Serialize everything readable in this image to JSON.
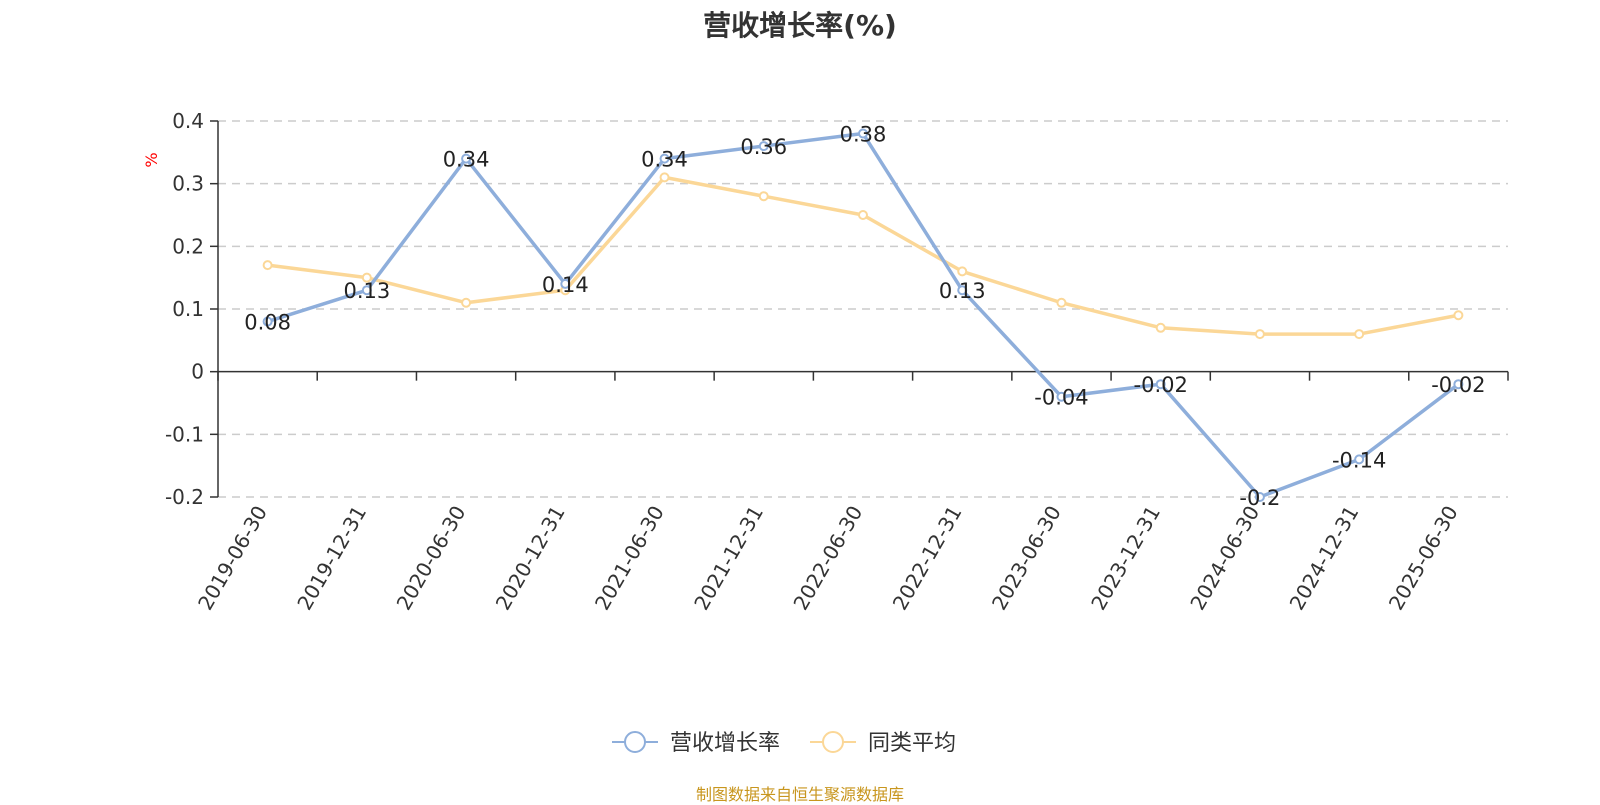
{
  "chart_data": {
    "type": "line",
    "title": "营收增长率(%)",
    "unit_label": "%",
    "categories": [
      "2019-06-30",
      "2019-12-31",
      "2020-06-30",
      "2020-12-31",
      "2021-06-30",
      "2021-12-31",
      "2022-06-30",
      "2022-12-31",
      "2023-06-30",
      "2023-12-31",
      "2024-06-30",
      "2024-12-31",
      "2025-06-30"
    ],
    "series": [
      {
        "name": "营收增长率",
        "color": "#8eaedb",
        "values": [
          0.08,
          0.13,
          0.34,
          0.14,
          0.34,
          0.36,
          0.38,
          0.13,
          -0.04,
          -0.02,
          -0.2,
          -0.14,
          -0.02
        ],
        "labels": [
          "0.08",
          "0.13",
          "0.34",
          "0.14",
          "0.34",
          "0.36",
          "0.38",
          "0.13",
          "-0.04",
          "-0.02",
          "-0.2",
          "-0.14",
          "-0.02"
        ]
      },
      {
        "name": "同类平均",
        "color": "#fbd797",
        "values": [
          0.17,
          0.15,
          0.11,
          0.13,
          0.31,
          0.28,
          0.25,
          0.16,
          0.11,
          0.07,
          0.06,
          0.06,
          0.09
        ]
      }
    ],
    "ylim": [
      -0.2,
      0.4
    ],
    "yticks": [
      0.4,
      0.3,
      0.2,
      0.1,
      0,
      -0.1,
      -0.2
    ],
    "ytick_labels": [
      "0.4",
      "0.3",
      "0.2",
      "0.1",
      "0",
      "-0.1",
      "-0.2"
    ],
    "grid": true,
    "legend_position": "bottom-center"
  },
  "source_note": "制图数据来自恒生聚源数据库"
}
